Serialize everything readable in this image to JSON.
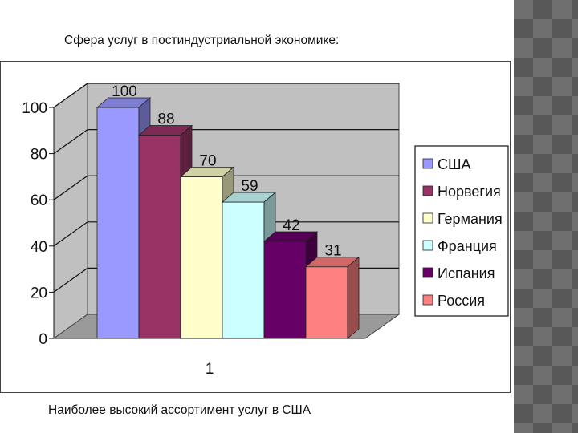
{
  "slide": {
    "title": "Сфера услуг в постиндустриальной экономике:",
    "caption": "Наиболее высокий ассортимент услуг в США"
  },
  "chart_data": {
    "type": "bar",
    "categories": [
      "1"
    ],
    "series": [
      {
        "name": "США",
        "values": [
          100
        ],
        "color": "#9999ff"
      },
      {
        "name": "Норвегия",
        "values": [
          88
        ],
        "color": "#993366"
      },
      {
        "name": "Германия",
        "values": [
          70
        ],
        "color": "#ffffcc"
      },
      {
        "name": "Франция",
        "values": [
          59
        ],
        "color": "#ccffff"
      },
      {
        "name": "Испания",
        "values": [
          42
        ],
        "color": "#660066"
      },
      {
        "name": "Россия",
        "values": [
          31
        ],
        "color": "#ff8080"
      }
    ],
    "ylim": [
      0,
      100
    ],
    "yticks": [
      0,
      20,
      40,
      60,
      80,
      100
    ],
    "grid": true,
    "legend": "right",
    "style": "3d-column",
    "wall_color": "#c0c0c0"
  }
}
